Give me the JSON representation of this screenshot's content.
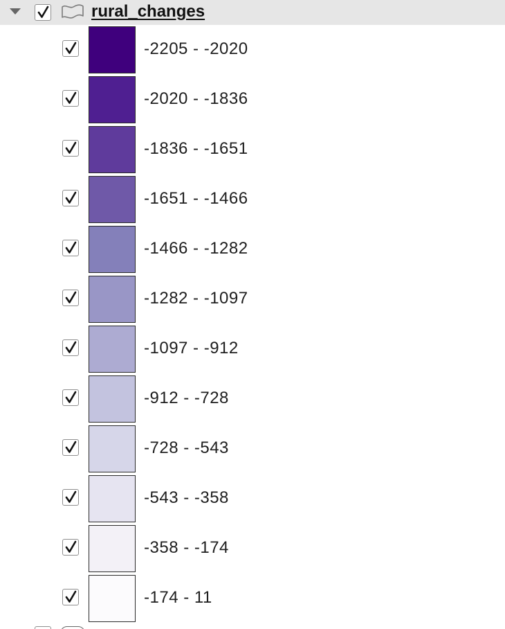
{
  "layer": {
    "name": "rural_changes",
    "checked": true,
    "expanded": true,
    "icon": "polygon-layer-icon"
  },
  "legend": [
    {
      "label": "-2205 - -2020",
      "color": "#3f007d",
      "checked": true
    },
    {
      "label": "-2020 - -1836",
      "color": "#4f1f91",
      "checked": true
    },
    {
      "label": "-1836 - -1651",
      "color": "#5f3b9c",
      "checked": true
    },
    {
      "label": "-1651 - -1466",
      "color": "#6f59a8",
      "checked": true
    },
    {
      "label": "-1466 - -1282",
      "color": "#8480ba",
      "checked": true
    },
    {
      "label": "-1282 - -1097",
      "color": "#9996c6",
      "checked": true
    },
    {
      "label": "-1097 - -912",
      "color": "#adabd2",
      "checked": true
    },
    {
      "label": "-912 - -728",
      "color": "#c3c3df",
      "checked": true
    },
    {
      "label": "-728 - -543",
      "color": "#d6d6e9",
      "checked": true
    },
    {
      "label": "-543 - -358",
      "color": "#e6e4f1",
      "checked": true
    },
    {
      "label": "-358 - -174",
      "color": "#f3f1f7",
      "checked": true
    },
    {
      "label": "-174 - 11",
      "color": "#fcfbfd",
      "checked": true
    }
  ]
}
